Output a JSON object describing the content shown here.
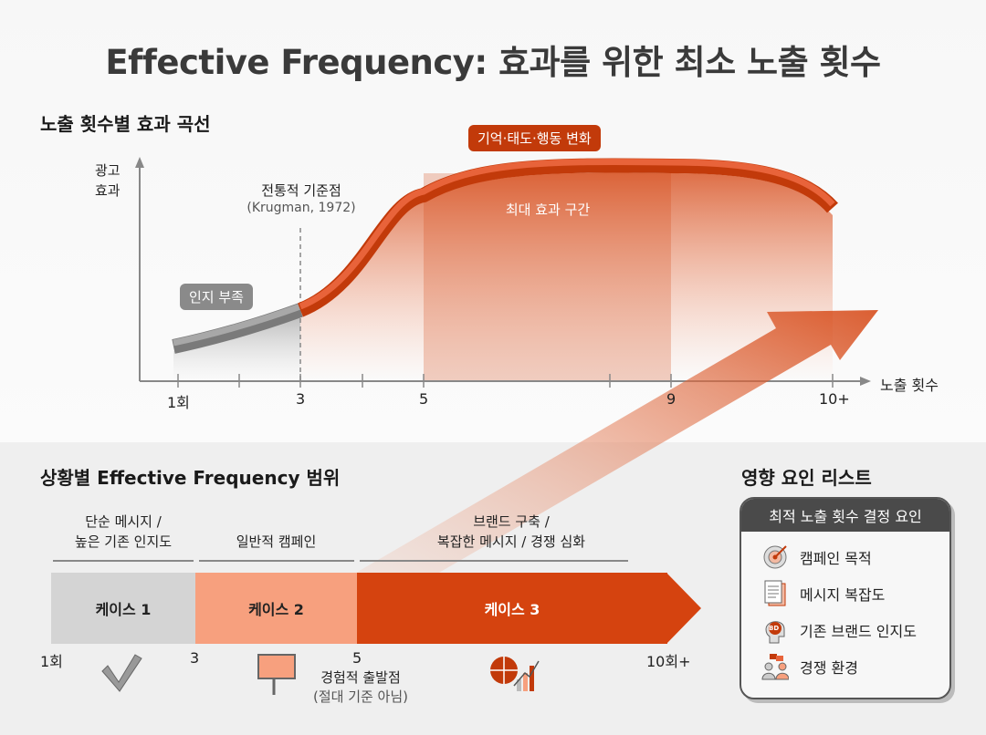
{
  "title": "Effective Frequency: 효과를 위한 최소 노출 횟수",
  "curve_section": {
    "heading": "노출 횟수별 효과 곡선",
    "y_label_line1": "광고",
    "y_label_line2": "효과",
    "x_label": "노출 횟수",
    "x_ticks": [
      "1회",
      "3",
      "5",
      "9",
      "10+"
    ],
    "traditional_point": "전통적 기준점",
    "traditional_source": "(Krugman, 1972)",
    "low_label": "인지 부족",
    "top_label": "기억·태도·행동 변화",
    "peak_label": "최대 효과 구간"
  },
  "range_section": {
    "heading": "상황별 Effective Frequency 범위",
    "cases": [
      {
        "desc_line1": "단순 메시지 /",
        "desc_line2": "높은 기존 인지도",
        "label": "케이스 1",
        "color": "#d4d4d4",
        "icon": "checkmark-icon"
      },
      {
        "desc_line1": "",
        "desc_line2": "일반적 캠페인",
        "label": "케이스 2",
        "color": "#f7a07e",
        "icon": "billboard-icon"
      },
      {
        "desc_line1": "브랜드 구축 /",
        "desc_line2": "복잡한 메시지 / 경쟁 심화",
        "label": "케이스 3",
        "color": "#d5430f",
        "icon": "globe-growth-chart-icon"
      }
    ],
    "scale": [
      "1회",
      "3",
      "5",
      "10회+"
    ],
    "start_point": "경험적 출발점",
    "start_note": "(절대 기준 아님)"
  },
  "factors_section": {
    "heading": "영향 요인 리스트",
    "panel_title": "최적 노출 횟수 결정 요인",
    "items": [
      {
        "label": "캠페인 목적",
        "icon": "target-icon"
      },
      {
        "label": "메시지 복잡도",
        "icon": "document-icon"
      },
      {
        "label": "기존 브랜드 인지도",
        "icon": "head-brand-icon",
        "icon_text": "BD"
      },
      {
        "label": "경쟁 환경",
        "icon": "people-chat-icon"
      }
    ]
  },
  "colors": {
    "accent": "#d5430f",
    "accent_light": "#f7a07e",
    "gray": "#8a8a8a",
    "dark": "#4a4a4a"
  }
}
